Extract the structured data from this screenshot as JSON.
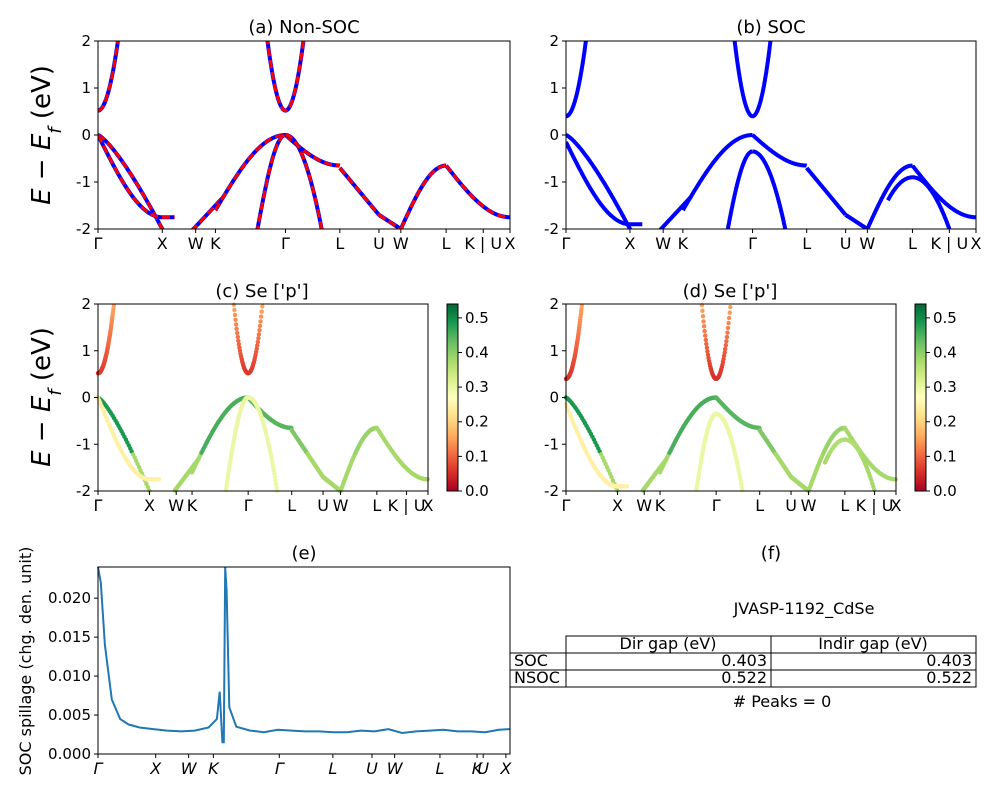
{
  "figure": {
    "ylabel_energy": "E − E_f (eV)",
    "panel_titles": {
      "a": "(a) Non-SOC",
      "b": "(b) SOC",
      "c": "(c)  Se ['p']",
      "d": "(d) Se ['p']",
      "e": "(e)",
      "f": "(f)"
    },
    "kpath_labels": [
      "Γ",
      "X",
      "W",
      "K",
      "Γ",
      "L",
      "U",
      "W",
      "L",
      "K | U",
      "X"
    ],
    "colors": {
      "bands_blue": "#0000ff",
      "bands_red": "#ff0000",
      "spillage_line": "#1f77b4"
    }
  },
  "chart_data": [
    {
      "id": "a",
      "type": "line",
      "title": "(a) Non-SOC",
      "ylabel": "E − E_f (eV)",
      "ylim": [
        -2,
        2
      ],
      "yticks": [
        -2,
        -1,
        0,
        1,
        2
      ],
      "xticklabels": [
        "Γ",
        "X",
        "W",
        "K",
        "Γ",
        "L",
        "U",
        "W",
        "L",
        "K | U",
        "X"
      ],
      "series_note": "blue solid bands overlaid by red dashed bands",
      "band_gap_eV": 0.522,
      "valence_max_eV": 0.0,
      "conduction_min_eV": 0.52
    },
    {
      "id": "b",
      "type": "line",
      "title": "(b) SOC",
      "ylim": [
        -2,
        2
      ],
      "yticks": [
        -2,
        -1,
        0,
        1,
        2
      ],
      "xticklabels": [
        "Γ",
        "X",
        "W",
        "K",
        "Γ",
        "L",
        "U",
        "W",
        "L",
        "K | U",
        "X"
      ],
      "band_gap_eV": 0.403,
      "split_off_at_gamma_eV": -0.35,
      "conduction_min_eV": 0.4
    },
    {
      "id": "c",
      "type": "scatter",
      "title": "(c)  Se ['p']",
      "ylabel": "E − E_f (eV)",
      "ylim": [
        -2,
        2
      ],
      "yticks": [
        -2,
        -1,
        0,
        1,
        2
      ],
      "xticklabels": [
        "Γ",
        "X",
        "W",
        "K",
        "Γ",
        "L",
        "U",
        "W",
        "L",
        "K | U",
        "X"
      ],
      "colorbar": {
        "min": 0.0,
        "max": 0.54,
        "ticks": [
          0.0,
          0.1,
          0.2,
          0.3,
          0.4,
          0.5
        ],
        "colormap": "RdYlGn"
      }
    },
    {
      "id": "d",
      "type": "scatter",
      "title": "(d) Se ['p']",
      "ylim": [
        -2,
        2
      ],
      "yticks": [
        -2,
        -1,
        0,
        1,
        2
      ],
      "xticklabels": [
        "Γ",
        "X",
        "W",
        "K",
        "Γ",
        "L",
        "U",
        "W",
        "L",
        "K | U",
        "X"
      ],
      "colorbar": {
        "min": 0.0,
        "max": 0.54,
        "ticks": [
          0.0,
          0.1,
          0.2,
          0.3,
          0.4,
          0.5
        ],
        "colormap": "RdYlGn"
      }
    },
    {
      "id": "e",
      "type": "line",
      "title": "(e)",
      "ylabel": "SOC spillage (chg. den. unit)",
      "ylim": [
        0,
        0.024
      ],
      "yticks": [
        "0.000",
        "0.005",
        "0.010",
        "0.015",
        "0.020"
      ],
      "xticklabels": [
        "Γ",
        "X",
        "W",
        "K",
        "Γ",
        "L",
        "U",
        "W",
        "L",
        "K",
        "U",
        "X"
      ],
      "x": [
        0,
        2,
        5,
        10,
        16,
        22,
        30,
        40,
        50,
        60,
        70,
        80,
        86,
        88,
        90,
        91,
        92,
        93,
        95,
        100,
        110,
        120,
        130,
        140,
        150,
        160,
        170,
        180,
        190,
        200,
        210,
        220,
        230,
        240,
        250,
        260,
        270,
        280,
        290,
        298
      ],
      "values": [
        0.024,
        0.022,
        0.014,
        0.007,
        0.0045,
        0.0038,
        0.0034,
        0.0032,
        0.003,
        0.0029,
        0.003,
        0.0034,
        0.0045,
        0.008,
        0.0015,
        0.0015,
        0.024,
        0.021,
        0.006,
        0.0035,
        0.003,
        0.0028,
        0.0031,
        0.003,
        0.0029,
        0.0029,
        0.0028,
        0.0028,
        0.003,
        0.0029,
        0.0032,
        0.0027,
        0.0029,
        0.003,
        0.0031,
        0.0029,
        0.0029,
        0.0028,
        0.0031,
        0.0032
      ]
    },
    {
      "id": "f",
      "type": "table",
      "title": "(f)",
      "caption": "JVASP-1192_CdSe",
      "columns": [
        "",
        "Dir gap (eV)",
        "Indir gap (eV)"
      ],
      "rows": [
        {
          "label": "SOC",
          "dir_gap": "0.403",
          "indir_gap": "0.403"
        },
        {
          "label": "NSOC",
          "dir_gap": "0.522",
          "indir_gap": "0.522"
        }
      ],
      "footer": "# Peaks = 0"
    }
  ]
}
